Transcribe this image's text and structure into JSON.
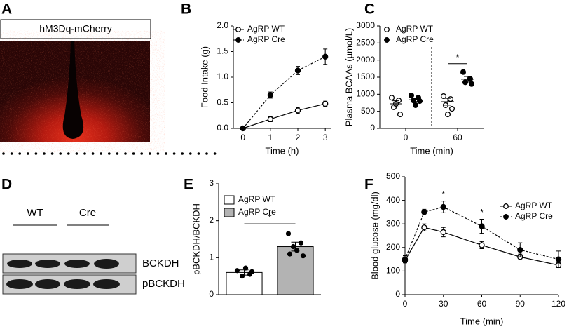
{
  "panel_a": {
    "letter": "A",
    "label": "hM3Dq-mCherry"
  },
  "panel_d": {
    "letter": "D",
    "groups": [
      "WT",
      "Cre"
    ],
    "rows": [
      "BCKDH",
      "pBCKDH"
    ]
  },
  "chart_data": [
    {
      "type": "line",
      "panel": "B",
      "xlabel": "Time (h)",
      "ylabel": "Food Intake (g)",
      "x": [
        0,
        1,
        2,
        3
      ],
      "xlim": [
        -0.35,
        3.2
      ],
      "xticks": [
        0,
        1,
        2,
        3
      ],
      "ylim": [
        0,
        2
      ],
      "yticks": [
        {
          "value": 0,
          "label": "0.0"
        },
        {
          "value": 0.5,
          "label": "0.5"
        },
        {
          "value": 1,
          "label": "1.0"
        },
        {
          "value": 1.5,
          "label": "1.5"
        },
        {
          "value": 2,
          "label": "2.0"
        }
      ],
      "series": [
        {
          "name": "AgRP WT",
          "color": "#000000",
          "values": [
            0,
            0.18,
            0.35,
            0.48
          ],
          "errors": [
            0,
            0.05,
            0.06,
            0.05
          ],
          "dashed": false,
          "filled": false
        },
        {
          "name": "AgRP Cre",
          "color": "#000000",
          "values": [
            0,
            0.65,
            1.13,
            1.4
          ],
          "errors": [
            0,
            0.06,
            0.08,
            0.15
          ],
          "dashed": true,
          "filled": true
        }
      ],
      "legend": "upper left",
      "grid": false
    },
    {
      "type": "dot",
      "panel": "C",
      "xlabel": "Time (min)",
      "ylabel": "Plasma BCAAs (µmol/L)",
      "categories": [
        "0",
        "60"
      ],
      "ylim": [
        0,
        3000
      ],
      "yticks": [
        0,
        500,
        1000,
        1500,
        2000,
        2500,
        3000
      ],
      "series": [
        {
          "name": "AgRP WT",
          "color": "#000000",
          "filled": false,
          "points": [
            [
              900,
              820,
              620,
              410,
              720
            ],
            [
              945,
              860,
              680,
              575,
              410
            ]
          ],
          "means": [
            720,
            780
          ],
          "sem": [
            90,
            100
          ]
        },
        {
          "name": "AgRP Cre",
          "color": "#000000",
          "filled": true,
          "points": [
            [
              965,
              900,
              820,
              800,
              680
            ],
            [
              1650,
              1450,
              1350,
              1300
            ]
          ],
          "means": [
            840,
            1440
          ],
          "sem": [
            55,
            80
          ]
        }
      ],
      "annotations": [
        {
          "text": "*"
        }
      ],
      "legend": "upper left",
      "grid": false
    },
    {
      "type": "bar",
      "panel": "E",
      "ylabel": "pBCKDH/BCKDH",
      "ylim": [
        0,
        3
      ],
      "yticks": [
        0,
        1,
        2,
        3
      ],
      "series": [
        {
          "name": "AgRP WT",
          "color": "#ffffff",
          "value": 0.6,
          "error": 0.07,
          "points": [
            0.65,
            0.55,
            0.5,
            0.62,
            0.72
          ]
        },
        {
          "name": "AgRP Cre",
          "color": "#b3b3b3",
          "value": 1.3,
          "error": 0.12,
          "points": [
            1.65,
            1.4,
            1.3,
            1.05,
            1.2,
            1.1
          ]
        }
      ],
      "annotations": [
        {
          "text": "*"
        }
      ],
      "legend": "upper left",
      "grid": false
    },
    {
      "type": "line",
      "panel": "F",
      "xlabel": "Time (min)",
      "ylabel": "Blood glucose (mg/dl)",
      "x": [
        0,
        15,
        30,
        60,
        90,
        120
      ],
      "xlim": [
        0,
        120
      ],
      "xticks": [
        0,
        30,
        60,
        90,
        120
      ],
      "ylim": [
        0,
        500
      ],
      "yticks": [
        0,
        100,
        200,
        300,
        400,
        500
      ],
      "series": [
        {
          "name": "AgRP WT",
          "color": "#000000",
          "values": [
            145,
            285,
            265,
            210,
            160,
            125
          ],
          "errors": [
            15,
            15,
            20,
            15,
            12,
            10
          ],
          "dashed": false,
          "filled": false
        },
        {
          "name": "AgRP Cre",
          "color": "#000000",
          "values": [
            150,
            350,
            372,
            290,
            190,
            150
          ],
          "errors": [
            15,
            12,
            25,
            30,
            30,
            35
          ],
          "dashed": true,
          "filled": true
        }
      ],
      "annotations": [
        {
          "text": "*",
          "x": 30
        },
        {
          "text": "*",
          "x": 60
        }
      ],
      "legend": "upper right",
      "grid": false
    }
  ]
}
